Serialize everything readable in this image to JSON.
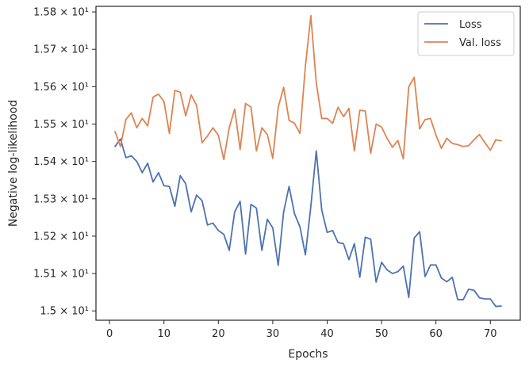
{
  "chart_data": {
    "type": "line",
    "xlabel": "Epochs",
    "ylabel": "Negative log-likelihood",
    "xlim": [
      -2.5,
      75.5
    ],
    "ylim": [
      14.975,
      15.815
    ],
    "x_ticks": [
      0,
      10,
      20,
      30,
      40,
      50,
      60,
      70
    ],
    "x_tick_labels": [
      "0",
      "10",
      "20",
      "30",
      "40",
      "50",
      "60",
      "70"
    ],
    "y_ticks": [
      15.0,
      15.1,
      15.2,
      15.3,
      15.4,
      15.5,
      15.6,
      15.7,
      15.8
    ],
    "y_tick_labels": [
      "1.5 × 10¹",
      "1.51 × 10¹",
      "1.52 × 10¹",
      "1.53 × 10¹",
      "1.54 × 10¹",
      "1.55 × 10¹",
      "1.56 × 10¹",
      "1.57 × 10¹",
      "1.58 × 10¹"
    ],
    "grid": false,
    "legend_position": "top-right",
    "x": [
      1,
      2,
      3,
      4,
      5,
      6,
      7,
      8,
      9,
      10,
      11,
      12,
      13,
      14,
      15,
      16,
      17,
      18,
      19,
      20,
      21,
      22,
      23,
      24,
      25,
      26,
      27,
      28,
      29,
      30,
      31,
      32,
      33,
      34,
      35,
      36,
      37,
      38,
      39,
      40,
      41,
      42,
      43,
      44,
      45,
      46,
      47,
      48,
      49,
      50,
      51,
      52,
      53,
      54,
      55,
      56,
      57,
      58,
      59,
      60,
      61,
      62,
      63,
      64,
      65,
      66,
      67,
      68,
      69,
      70,
      71,
      72
    ],
    "series": [
      {
        "name": "Loss",
        "color": "#4c72b0",
        "values": [
          15.44,
          15.46,
          15.41,
          15.415,
          15.4,
          15.37,
          15.395,
          15.345,
          15.37,
          15.335,
          15.333,
          15.28,
          15.362,
          15.34,
          15.265,
          15.31,
          15.295,
          15.23,
          15.235,
          15.215,
          15.205,
          15.162,
          15.265,
          15.293,
          15.152,
          15.285,
          15.275,
          15.162,
          15.245,
          15.222,
          15.122,
          15.265,
          15.333,
          15.26,
          15.225,
          15.15,
          15.28,
          15.428,
          15.27,
          15.21,
          15.215,
          15.183,
          15.18,
          15.137,
          15.18,
          15.09,
          15.197,
          15.192,
          15.077,
          15.13,
          15.11,
          15.1,
          15.105,
          15.12,
          15.036,
          15.195,
          15.212,
          15.092,
          15.123,
          15.123,
          15.088,
          15.078,
          15.09,
          15.03,
          15.03,
          15.058,
          15.055,
          15.035,
          15.032,
          15.032,
          15.012,
          15.013
        ]
      },
      {
        "name": "Val. loss",
        "color": "#dd8452",
        "values": [
          15.48,
          15.44,
          15.512,
          15.53,
          15.49,
          15.515,
          15.495,
          15.572,
          15.58,
          15.56,
          15.475,
          15.59,
          15.585,
          15.522,
          15.578,
          15.55,
          15.45,
          15.468,
          15.49,
          15.47,
          15.405,
          15.49,
          15.54,
          15.432,
          15.555,
          15.545,
          15.428,
          15.49,
          15.472,
          15.408,
          15.545,
          15.598,
          15.51,
          15.502,
          15.475,
          15.655,
          15.79,
          15.61,
          15.515,
          15.515,
          15.502,
          15.545,
          15.52,
          15.542,
          15.428,
          15.537,
          15.535,
          15.422,
          15.5,
          15.492,
          15.462,
          15.438,
          15.456,
          15.407,
          15.6,
          15.625,
          15.487,
          15.512,
          15.515,
          15.47,
          15.435,
          15.462,
          15.448,
          15.445,
          15.44,
          15.442,
          15.458,
          15.472,
          15.45,
          15.43,
          15.458,
          15.455
        ]
      }
    ]
  }
}
